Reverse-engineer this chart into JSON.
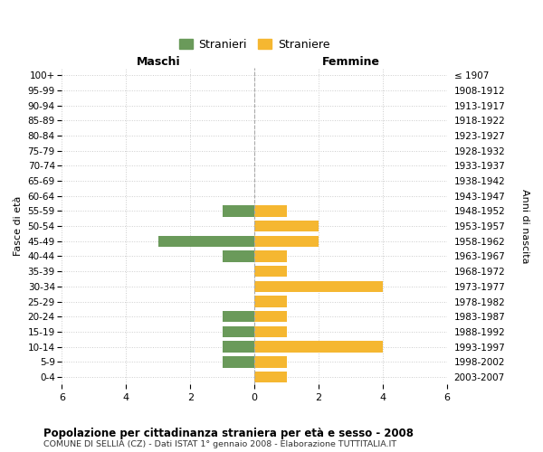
{
  "age_groups": [
    "100+",
    "95-99",
    "90-94",
    "85-89",
    "80-84",
    "75-79",
    "70-74",
    "65-69",
    "60-64",
    "55-59",
    "50-54",
    "45-49",
    "40-44",
    "35-39",
    "30-34",
    "25-29",
    "20-24",
    "15-19",
    "10-14",
    "5-9",
    "0-4"
  ],
  "birth_years": [
    "≤ 1907",
    "1908-1912",
    "1913-1917",
    "1918-1922",
    "1923-1927",
    "1928-1932",
    "1933-1937",
    "1938-1942",
    "1943-1947",
    "1948-1952",
    "1953-1957",
    "1958-1962",
    "1963-1967",
    "1968-1972",
    "1973-1977",
    "1978-1982",
    "1983-1987",
    "1988-1992",
    "1993-1997",
    "1998-2002",
    "2003-2007"
  ],
  "males": [
    0,
    0,
    0,
    0,
    0,
    0,
    0,
    0,
    0,
    1,
    0,
    3,
    1,
    0,
    0,
    0,
    1,
    1,
    1,
    1,
    0
  ],
  "females": [
    0,
    0,
    0,
    0,
    0,
    0,
    0,
    0,
    0,
    1,
    2,
    2,
    1,
    1,
    4,
    1,
    1,
    1,
    4,
    1,
    1
  ],
  "male_color": "#6a9a5a",
  "female_color": "#f5b731",
  "xlabel_left": "Maschi",
  "xlabel_right": "Femmine",
  "ylabel_left": "Fasce di età",
  "ylabel_right": "Anni di nascita",
  "xlim": 6,
  "title": "Popolazione per cittadinanza straniera per età e sesso - 2008",
  "subtitle": "COMUNE DI SELLIA (CZ) - Dati ISTAT 1° gennaio 2008 - Elaborazione TUTTITALIA.IT",
  "legend_male": "Stranieri",
  "legend_female": "Straniere",
  "grid_color": "#cccccc",
  "bg_color": "#ffffff",
  "bar_height": 0.75
}
